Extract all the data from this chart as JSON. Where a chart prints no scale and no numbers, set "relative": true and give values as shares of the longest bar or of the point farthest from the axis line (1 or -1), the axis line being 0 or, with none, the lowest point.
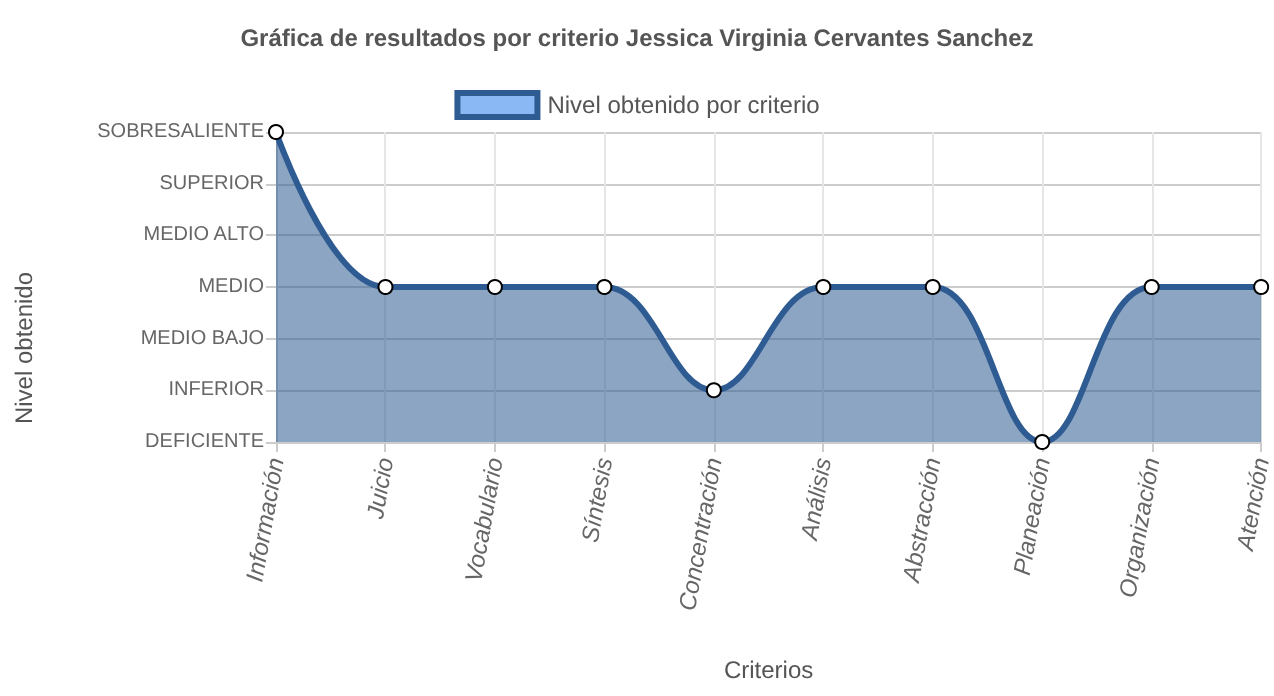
{
  "chart_data": {
    "type": "area",
    "title": "Gráfica de resultados por criterio Jessica Virginia Cervantes Sanchez",
    "xlabel": "Criterios",
    "categories": [
      "Información",
      "Juicio",
      "Vocabulario",
      "Síntesis",
      "Concentración",
      "Análisis",
      "Abstracción",
      "Planeación",
      "Organización",
      "Atención"
    ],
    "relative": true,
    "series": [
      {
        "name": "Nivel obtenido por criterio",
        "color": "#2d5b92",
        "values": [
          1,
          0.5,
          0.5,
          0.5,
          0.167,
          0.5,
          0.5,
          0,
          0.5,
          0.5
        ]
      }
    ],
    "annotations": [
      "Nivel obtenido",
      "SOBRESALIENTE",
      "SUPERIOR",
      "MEDIO ALTO",
      "MEDIO",
      "MEDIO BAJO",
      "INFERIOR",
      "DEFICIENTE"
    ],
    "grid": true,
    "legend": "top",
    "marker": "circle"
  }
}
